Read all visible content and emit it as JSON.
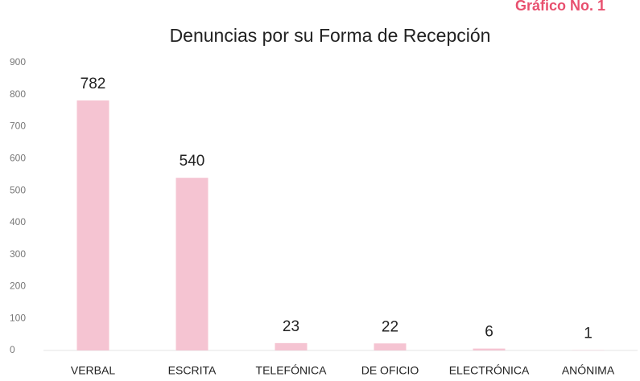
{
  "chart_data": {
    "type": "bar",
    "title": "Denuncias por su Forma de Recepción",
    "annotation": "Gráfico No. 1",
    "categories": [
      "VERBAL",
      "ESCRITA",
      "TELEFÓNICA",
      "DE OFICIO",
      "ELECTRÓNICA",
      "ANÓNIMA"
    ],
    "values": [
      782,
      540,
      23,
      22,
      6,
      1
    ],
    "color": "#f5c4d2",
    "ylim": [
      0,
      900
    ],
    "yticks": [
      0,
      100,
      200,
      300,
      400,
      500,
      600,
      700,
      800,
      900
    ],
    "grid": false
  }
}
